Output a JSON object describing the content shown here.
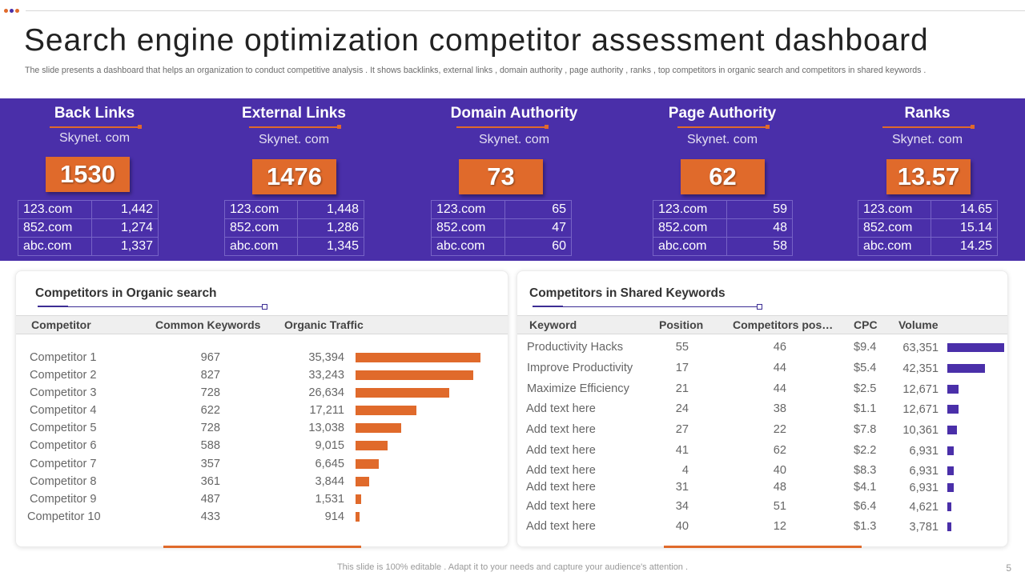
{
  "theme": {
    "purple": "#4a2fa9",
    "orange": "#e06a2b",
    "dot_colors": [
      "#e06a2b",
      "#4a2fa9",
      "#e06a2b"
    ]
  },
  "title": "Search engine optimization competitor assessment dashboard",
  "subtitle": "The slide presents a dashboard that helps an organization to conduct competitive analysis . It shows backlinks, external links , domain authority , page authority , ranks , top competitors in organic search and competitors in shared keywords .",
  "kpis": [
    {
      "title": "Back Links",
      "domain": "Skynet. com",
      "value": "1530",
      "rows": [
        {
          "site": "123.com",
          "value": "1,442"
        },
        {
          "site": "852.com",
          "value": "1,274"
        },
        {
          "site": "abc.com",
          "value": "1,337"
        }
      ]
    },
    {
      "title": "External Links",
      "domain": "Skynet. com",
      "value": "1476",
      "rows": [
        {
          "site": "123.com",
          "value": "1,448"
        },
        {
          "site": "852.com",
          "value": "1,286"
        },
        {
          "site": "abc.com",
          "value": "1,345"
        }
      ]
    },
    {
      "title": "Domain Authority",
      "domain": "Skynet. com",
      "value": "73",
      "rows": [
        {
          "site": "123.com",
          "value": "65"
        },
        {
          "site": "852.com",
          "value": "47"
        },
        {
          "site": "abc.com",
          "value": "60"
        }
      ]
    },
    {
      "title": "Page Authority",
      "domain": "Skynet. com",
      "value": "62",
      "rows": [
        {
          "site": "123.com",
          "value": "59"
        },
        {
          "site": "852.com",
          "value": "48"
        },
        {
          "site": "abc.com",
          "value": "58"
        }
      ]
    },
    {
      "title": "Ranks",
      "domain": "Skynet. com",
      "value": "13.57",
      "rows": [
        {
          "site": "123.com",
          "value": "14.65"
        },
        {
          "site": "852.com",
          "value": "15.14"
        },
        {
          "site": "abc.com",
          "value": "14.25"
        }
      ]
    }
  ],
  "organic": {
    "title": "Competitors  in Organic search",
    "headers": {
      "competitor": "Competitor",
      "keywords": "Common Keywords",
      "traffic": "Organic Traffic"
    },
    "rows": [
      {
        "name": "Competitor 1",
        "keywords": "967",
        "traffic_label": "35,394",
        "traffic": 35394
      },
      {
        "name": "Competitor 2",
        "keywords": "827",
        "traffic_label": "33,243",
        "traffic": 33243
      },
      {
        "name": "Competitor 3",
        "keywords": "728",
        "traffic_label": "26,634",
        "traffic": 26634
      },
      {
        "name": "Competitor 4",
        "keywords": "622",
        "traffic_label": "17,211",
        "traffic": 17211
      },
      {
        "name": "Competitor 5",
        "keywords": "728",
        "traffic_label": "13,038",
        "traffic": 13038
      },
      {
        "name": "Competitor 6",
        "keywords": "588",
        "traffic_label": "9,015",
        "traffic": 9015
      },
      {
        "name": "Competitor 7",
        "keywords": "357",
        "traffic_label": "6,645",
        "traffic": 6645
      },
      {
        "name": "Competitor 8",
        "keywords": "361",
        "traffic_label": "3,844",
        "traffic": 3844
      },
      {
        "name": "Competitor 9",
        "keywords": "487",
        "traffic_label": "1,531",
        "traffic": 1531
      },
      {
        "name": "Competitor 10",
        "keywords": "433",
        "traffic_label": "914",
        "traffic": 914
      }
    ]
  },
  "shared": {
    "title": "Competitors  in Shared Keywords",
    "headers": {
      "keyword": "Keyword",
      "position": "Position",
      "competitor_pos": "Competitors pos…",
      "cpc": "CPC",
      "volume": "Volume"
    },
    "rows": [
      {
        "keyword": "Productivity Hacks",
        "position": "55",
        "comp_pos": "46",
        "cpc": "$9.4",
        "volume_label": "63,351",
        "volume": 63351
      },
      {
        "keyword": "Improve Productivity",
        "position": "17",
        "comp_pos": "44",
        "cpc": "$5.4",
        "volume_label": "42,351",
        "volume": 42351
      },
      {
        "keyword": "Maximize Efficiency",
        "position": "21",
        "comp_pos": "44",
        "cpc": "$2.5",
        "volume_label": "12,671",
        "volume": 12671
      },
      {
        "keyword": "Add text here",
        "position": "24",
        "comp_pos": "38",
        "cpc": "$1.1",
        "volume_label": "12,671",
        "volume": 12671
      },
      {
        "keyword": "Add text here",
        "position": "27",
        "comp_pos": "22",
        "cpc": "$7.8",
        "volume_label": "10,361",
        "volume": 10361
      },
      {
        "keyword": "Add text here",
        "position": "41",
        "comp_pos": "62",
        "cpc": "$2.2",
        "volume_label": "6,931",
        "volume": 6931
      },
      {
        "keyword": "Add text here",
        "position": "4",
        "comp_pos": "40",
        "cpc": "$8.3",
        "volume_label": "6,931",
        "volume": 6931
      },
      {
        "keyword": "Add text here",
        "position": "31",
        "comp_pos": "48",
        "cpc": "$4.1",
        "volume_label": "6,931",
        "volume": 6931
      },
      {
        "keyword": "Add text here",
        "position": "34",
        "comp_pos": "51",
        "cpc": "$6.4",
        "volume_label": "4,621",
        "volume": 4621
      },
      {
        "keyword": "Add text here",
        "position": "40",
        "comp_pos": "12",
        "cpc": "$1.3",
        "volume_label": "3,781",
        "volume": 3781
      }
    ]
  },
  "footer": "This slide is 100% editable . Adapt it to your needs and capture your audience's attention .",
  "page_number": "5"
}
